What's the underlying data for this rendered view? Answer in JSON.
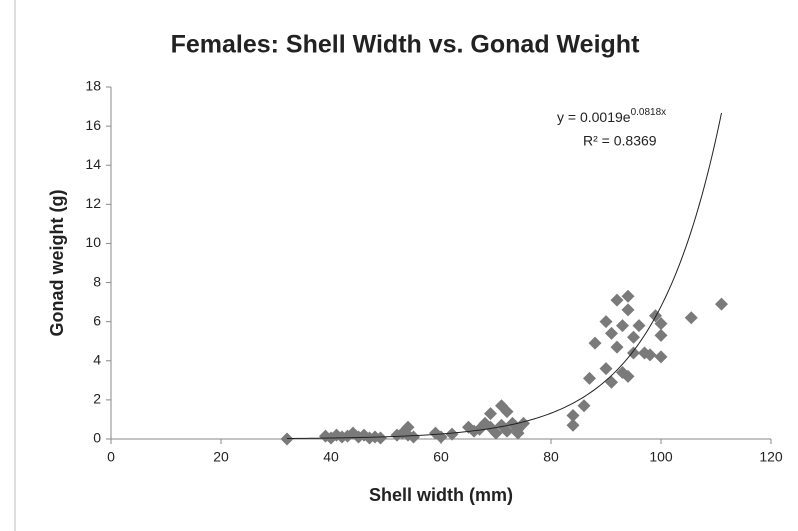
{
  "chart_data": {
    "type": "scatter",
    "title": "Females: Shell Width vs. Gonad Weight",
    "x_label": "Shell width (mm)",
    "y_label": "Gonad weight (g)",
    "color": "#7a7a7a",
    "x": [
      32,
      39,
      40,
      41,
      42,
      43,
      44,
      45,
      46,
      47,
      48,
      49,
      52,
      53,
      54,
      54,
      55,
      59,
      60,
      62,
      65,
      66,
      67,
      68,
      69,
      69,
      70,
      71,
      71,
      72,
      72,
      73,
      74,
      74,
      75,
      84,
      84,
      86,
      87,
      88,
      90,
      90,
      91,
      91,
      92,
      92,
      93,
      93,
      94,
      94,
      94,
      95,
      95,
      96,
      97,
      98,
      99,
      100,
      100,
      100,
      105.5,
      111
    ],
    "values": [
      0,
      0.15,
      0.05,
      0.2,
      0.1,
      0.15,
      0.3,
      0.1,
      0.2,
      0.05,
      0.1,
      0.05,
      0.2,
      0.3,
      0.6,
      0.2,
      0.1,
      0.3,
      0.1,
      0.25,
      0.6,
      0.4,
      0.5,
      0.8,
      0.6,
      1.3,
      0.3,
      1.7,
      0.7,
      1.4,
      0.4,
      0.8,
      0.5,
      0.3,
      0.8,
      0.7,
      1.2,
      1.7,
      3.1,
      4.9,
      3.6,
      6.0,
      2.9,
      5.4,
      7.1,
      4.7,
      3.4,
      5.8,
      3.2,
      6.6,
      7.3,
      4.4,
      5.2,
      5.8,
      4.4,
      4.3,
      6.3,
      5.9,
      5.3,
      4.2,
      6.2,
      6.9
    ],
    "xlim": [
      0,
      120
    ],
    "xticks": [
      0,
      20,
      40,
      60,
      80,
      100,
      120
    ],
    "ylim": [
      0,
      18
    ],
    "yticks": [
      0,
      2,
      4,
      6,
      8,
      10,
      12,
      14,
      16,
      18
    ],
    "trendline": {
      "equation": "y = 0.0019e",
      "exponent": "0.0818x",
      "r_squared": "R² = 0.8369",
      "a": 0.0019,
      "b": 0.0818,
      "xmin": 32,
      "xmax": 111
    }
  }
}
